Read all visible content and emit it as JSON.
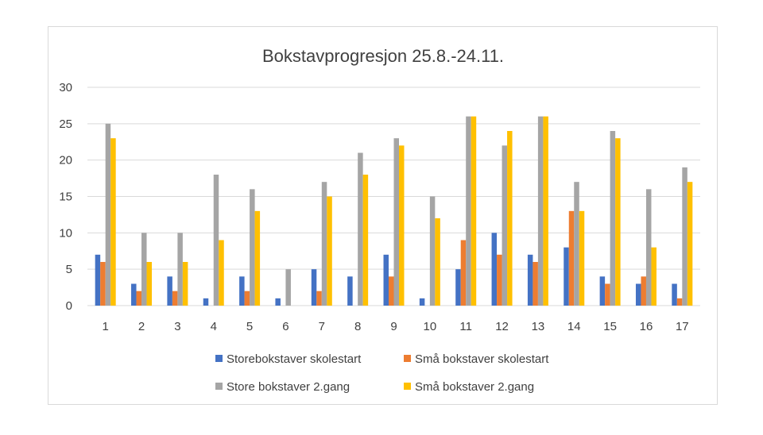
{
  "chart_data": {
    "type": "bar",
    "title": "Bokstavprogresjon 25.8.-24.11.",
    "xlabel": "",
    "ylabel": "",
    "ylim": [
      0,
      30
    ],
    "yticks": [
      0,
      5,
      10,
      15,
      20,
      25,
      30
    ],
    "grid": true,
    "legend_position": "bottom",
    "categories": [
      "1",
      "2",
      "3",
      "4",
      "5",
      "6",
      "7",
      "8",
      "9",
      "10",
      "11",
      "12",
      "13",
      "14",
      "15",
      "16",
      "17"
    ],
    "series": [
      {
        "name": "Storebokstaver skolestart",
        "color": "#4472C4",
        "values": [
          7,
          3,
          4,
          1,
          4,
          1,
          5,
          4,
          7,
          1,
          5,
          10,
          7,
          8,
          4,
          3,
          3
        ]
      },
      {
        "name": "Små bokstaver skolestart",
        "color": "#ED7D31",
        "values": [
          6,
          2,
          2,
          0,
          2,
          0,
          2,
          0,
          4,
          0,
          9,
          7,
          6,
          13,
          3,
          4,
          1
        ]
      },
      {
        "name": "Store bokstaver 2.gang",
        "color": "#A5A5A5",
        "values": [
          25,
          10,
          10,
          18,
          16,
          5,
          17,
          21,
          23,
          15,
          26,
          22,
          26,
          17,
          24,
          16,
          19
        ]
      },
      {
        "name": "Små bokstaver 2.gang",
        "color": "#FFC000",
        "values": [
          23,
          6,
          6,
          9,
          13,
          0,
          15,
          18,
          22,
          12,
          26,
          24,
          26,
          13,
          23,
          8,
          17
        ]
      }
    ]
  }
}
